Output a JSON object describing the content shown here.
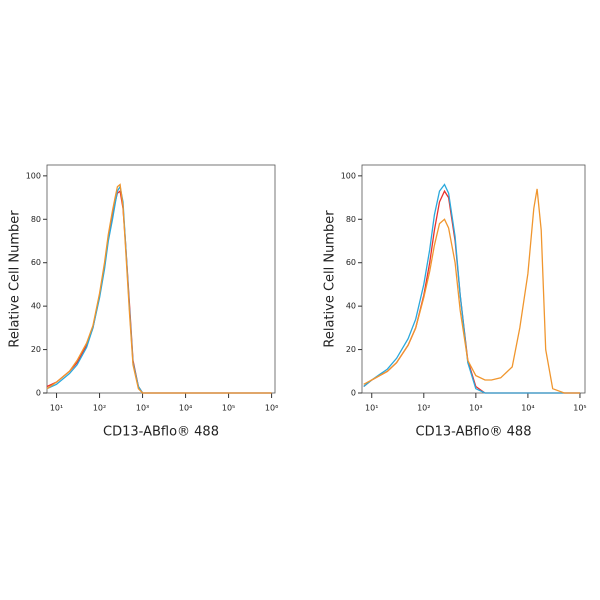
{
  "chart_data": [
    {
      "type": "line",
      "log_x": true,
      "xlabel": "CD13-ABflo® 488",
      "ylabel": "Relative Cell Number",
      "xlim": [
        6,
        1200000
      ],
      "ylim": [
        0,
        105
      ],
      "xticks": [
        {
          "value": 10,
          "label": "10¹"
        },
        {
          "value": 100,
          "label": "10²"
        },
        {
          "value": 1000,
          "label": "10³"
        },
        {
          "value": 10000,
          "label": "10⁴"
        },
        {
          "value": 100000,
          "label": "10⁵"
        },
        {
          "value": 1000000,
          "label": "10⁶"
        }
      ],
      "yticks": [
        0,
        20,
        40,
        60,
        80,
        100
      ],
      "x": [
        6,
        10,
        20,
        30,
        50,
        70,
        100,
        130,
        160,
        200,
        230,
        260,
        300,
        350,
        400,
        500,
        600,
        800,
        1000,
        1500,
        3000,
        10000,
        100000,
        1000000
      ],
      "series": [
        {
          "color": "#e8322d",
          "values": [
            3,
            5,
            10,
            14,
            22,
            30,
            45,
            58,
            72,
            82,
            88,
            92,
            93,
            85,
            70,
            40,
            15,
            3,
            0,
            0,
            0,
            0,
            0,
            0
          ]
        },
        {
          "color": "#2aa8dc",
          "values": [
            2,
            4,
            9,
            13,
            21,
            30,
            44,
            57,
            70,
            80,
            87,
            93,
            95,
            88,
            70,
            38,
            14,
            3,
            0,
            0,
            0,
            0,
            0,
            0
          ]
        },
        {
          "color": "#f0962e",
          "values": [
            2,
            5,
            10,
            15,
            23,
            31,
            46,
            60,
            73,
            84,
            90,
            95,
            96,
            86,
            68,
            36,
            13,
            2,
            0,
            0,
            0,
            0,
            0,
            0
          ]
        }
      ]
    },
    {
      "type": "line",
      "log_x": true,
      "xlabel": "CD13-ABflo® 488",
      "ylabel": "Relative Cell Number",
      "xlim": [
        6.5,
        125000
      ],
      "ylim": [
        0,
        105
      ],
      "xticks": [
        {
          "value": 10,
          "label": "10¹"
        },
        {
          "value": 100,
          "label": "10²"
        },
        {
          "value": 1000,
          "label": "10³"
        },
        {
          "value": 10000,
          "label": "10⁴"
        },
        {
          "value": 100000,
          "label": "10⁵"
        }
      ],
      "yticks": [
        0,
        20,
        40,
        60,
        80,
        100
      ],
      "x": [
        7,
        10,
        20,
        30,
        50,
        70,
        100,
        130,
        160,
        200,
        250,
        300,
        400,
        500,
        700,
        1000,
        1500,
        2000,
        3000,
        5000,
        7000,
        10000,
        13000,
        15000,
        18000,
        22000,
        30000,
        50000,
        100000
      ],
      "series": [
        {
          "color": "#e8322d",
          "values": [
            3,
            6,
            10,
            14,
            22,
            30,
            45,
            60,
            75,
            88,
            93,
            90,
            70,
            45,
            15,
            3,
            0,
            0,
            0,
            0,
            0,
            0,
            0,
            0,
            0,
            0,
            0,
            0,
            0
          ]
        },
        {
          "color": "#2aa8dc",
          "values": [
            3,
            6,
            11,
            16,
            25,
            34,
            50,
            66,
            82,
            93,
            96,
            92,
            72,
            45,
            14,
            2,
            0,
            0,
            0,
            0,
            0,
            0,
            0,
            0,
            0,
            0,
            0,
            0,
            0
          ]
        },
        {
          "color": "#f0962e",
          "values": [
            4,
            6,
            10,
            14,
            22,
            30,
            44,
            56,
            68,
            78,
            80,
            76,
            60,
            38,
            15,
            8,
            6,
            6,
            7,
            12,
            30,
            55,
            85,
            94,
            75,
            20,
            2,
            0,
            0
          ]
        }
      ]
    }
  ]
}
